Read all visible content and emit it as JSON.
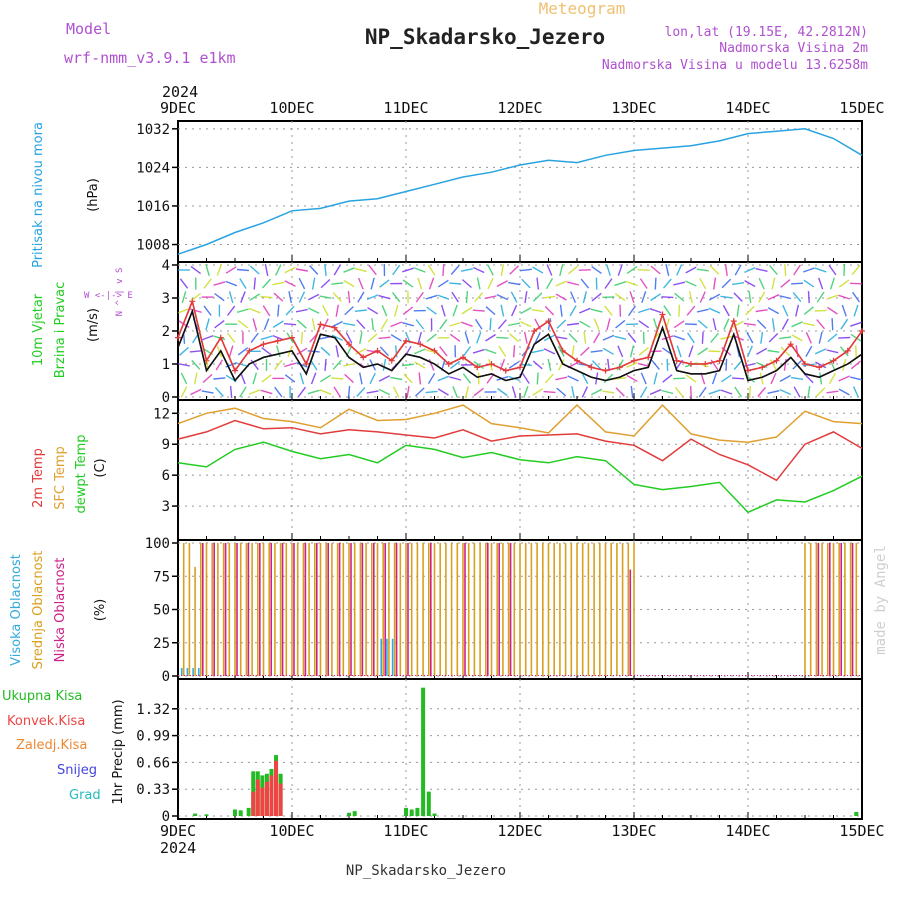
{
  "header": {
    "model_label": "Model",
    "model_name": "wrf-nmm_v3.9.1 e1km",
    "product": "Meteogram",
    "station": "NP_Skadarsko_Jezero",
    "coords": "lon,lat (19.15E, 42.2812N)",
    "elev_2m": "Nadmorska Visina 2m",
    "elev_model": "Nadmorska Visina u modelu 13.6258m",
    "watermark": "made by Angel",
    "footer_station": "NP_Skadarsko_Jezero"
  },
  "colors": {
    "pressure": "#29a3e0",
    "wind_speed": "#111111",
    "wind_gust": "#e23b3b",
    "temp_2m": "#e23b3b",
    "temp_sfc": "#e0a030",
    "temp_dew": "#22cc22",
    "cloud_high": "#33aadd",
    "cloud_mid": "#d9a020",
    "cloud_low": "#cc2288",
    "precip_total": "#22bb22",
    "precip_conv": "#ee4444",
    "precip_frozen": "#ee8833",
    "precip_snow": "#4444dd",
    "precip_hail": "#22bbbb",
    "label_purple": "#b050d0",
    "title_orange": "#f0c070"
  },
  "panel_labels": {
    "pressure": {
      "name": "Pritisak na nivou mora",
      "unit": "(hPa)"
    },
    "wind": {
      "line1": "10m Vjetar",
      "line2": "Brzina i Pravac",
      "unit": "(m/s)",
      "compass": "W <-|-> E",
      "compass_v": "N ^ | v S"
    },
    "temp": {
      "l1": "2m Temp",
      "l2": "SFC Temp",
      "l3": "dewpt Temp",
      "unit": "(C)"
    },
    "cloud": {
      "l1": "Visoka Oblacnost",
      "l2": "Srednja Oblacnost",
      "l3": "Niska Oblacnost",
      "unit": "(%)"
    },
    "precip": {
      "l1": "Ukupna Kisa",
      "l2": "Konvek.Kisa",
      "l3": "Zaledj.Kisa",
      "l4": "Snijeg",
      "l5": "Grad",
      "unit": "1hr Precip (mm)"
    }
  },
  "time_axis": {
    "year": "2024",
    "labels": [
      "9DEC",
      "10DEC",
      "11DEC",
      "12DEC",
      "13DEC",
      "14DEC",
      "15DEC"
    ]
  },
  "chart_data": [
    {
      "type": "line",
      "id": "pressure",
      "ylabel": "(hPa)",
      "ylim": [
        1005,
        1033
      ],
      "yticks": [
        1008,
        1016,
        1024,
        1032
      ],
      "x_days": [
        0,
        0.25,
        0.5,
        0.75,
        1.0,
        1.25,
        1.5,
        1.75,
        2.0,
        2.25,
        2.5,
        2.75,
        3.0,
        3.25,
        3.5,
        3.75,
        4.0,
        4.25,
        4.5,
        4.75,
        5.0,
        5.25,
        5.5,
        5.75,
        6.0
      ],
      "series": [
        {
          "values": [
            1006,
            1008,
            1010.5,
            1012.5,
            1015,
            1015.5,
            1017,
            1017.5,
            1019,
            1020.5,
            1022,
            1023,
            1024.5,
            1025.5,
            1025,
            1026.5,
            1027.5,
            1028,
            1028.5,
            1029.5,
            1031,
            1031.5,
            1032,
            1030,
            1026.5
          ]
        }
      ]
    },
    {
      "type": "line",
      "id": "wind",
      "ylabel": "(m/s)",
      "ylim": [
        0,
        4
      ],
      "yticks": [
        0,
        1,
        2,
        3,
        4
      ],
      "x_days": [
        0,
        0.125,
        0.25,
        0.375,
        0.5,
        0.625,
        0.75,
        0.875,
        1.0,
        1.125,
        1.25,
        1.375,
        1.5,
        1.625,
        1.75,
        1.875,
        2.0,
        2.125,
        2.25,
        2.375,
        2.5,
        2.625,
        2.75,
        2.875,
        3.0,
        3.125,
        3.25,
        3.375,
        3.5,
        3.625,
        3.75,
        3.875,
        4.0,
        4.125,
        4.25,
        4.375,
        4.5,
        4.625,
        4.75,
        4.875,
        5.0,
        5.125,
        5.25,
        5.375,
        5.5,
        5.625,
        5.75,
        5.875,
        6.0
      ],
      "series": [
        {
          "values": [
            1.5,
            2.6,
            0.8,
            1.4,
            0.5,
            1.0,
            1.2,
            1.3,
            1.4,
            0.7,
            1.9,
            1.8,
            1.2,
            0.9,
            1.0,
            0.8,
            1.3,
            1.2,
            1.0,
            0.7,
            0.9,
            0.6,
            0.7,
            0.5,
            0.6,
            1.6,
            1.9,
            1.0,
            0.8,
            0.6,
            0.5,
            0.6,
            0.8,
            0.9,
            2.1,
            0.8,
            0.7,
            0.7,
            0.8,
            1.9,
            0.5,
            0.6,
            0.8,
            1.2,
            0.7,
            0.6,
            0.8,
            1.0,
            1.3
          ]
        },
        {
          "values": [
            1.8,
            2.9,
            1.1,
            1.8,
            0.8,
            1.4,
            1.6,
            1.7,
            1.8,
            1.0,
            2.2,
            2.1,
            1.6,
            1.2,
            1.4,
            1.1,
            1.7,
            1.6,
            1.4,
            1.0,
            1.2,
            0.9,
            1.0,
            0.8,
            0.9,
            2.0,
            2.3,
            1.4,
            1.1,
            0.9,
            0.8,
            0.9,
            1.1,
            1.2,
            2.5,
            1.1,
            1.0,
            1.0,
            1.1,
            2.3,
            0.8,
            0.9,
            1.1,
            1.6,
            1.0,
            0.9,
            1.1,
            1.4,
            2.0
          ]
        }
      ]
    },
    {
      "type": "line",
      "id": "temp",
      "ylabel": "(C)",
      "ylim": [
        0,
        13
      ],
      "yticks": [
        3,
        6,
        9,
        12
      ],
      "x_days": [
        0,
        0.25,
        0.5,
        0.75,
        1.0,
        1.25,
        1.5,
        1.75,
        2.0,
        2.25,
        2.5,
        2.75,
        3.0,
        3.25,
        3.5,
        3.75,
        4.0,
        4.25,
        4.5,
        4.75,
        5.0,
        5.25,
        5.5,
        5.75,
        6.0
      ],
      "series": [
        {
          "values": [
            9.5,
            10.2,
            11.3,
            10.5,
            10.6,
            10.0,
            10.4,
            10.2,
            9.9,
            9.6,
            10.4,
            9.3,
            9.8,
            9.9,
            10.0,
            9.3,
            8.9,
            7.4,
            9.5,
            8.0,
            7.0,
            5.5,
            9.0,
            10.2,
            8.6
          ]
        },
        {
          "values": [
            11.0,
            12.0,
            12.5,
            11.5,
            11.2,
            10.6,
            12.4,
            11.3,
            11.4,
            12.0,
            12.8,
            11.0,
            10.6,
            10.1,
            12.8,
            10.2,
            9.8,
            12.8,
            10.0,
            9.4,
            9.2,
            9.7,
            12.2,
            11.2,
            11.0
          ]
        },
        {
          "values": [
            7.2,
            6.8,
            8.5,
            9.2,
            8.3,
            7.6,
            8.0,
            7.2,
            8.9,
            8.5,
            7.7,
            8.2,
            7.5,
            7.2,
            7.8,
            7.4,
            5.1,
            4.6,
            4.9,
            5.3,
            2.4,
            3.6,
            3.4,
            4.5,
            5.9
          ]
        }
      ]
    },
    {
      "type": "bar",
      "id": "cloud",
      "ylabel": "(%)",
      "ylim": [
        0,
        100
      ],
      "yticks": [
        0,
        25,
        50,
        75,
        100
      ],
      "x_days": [
        0.05,
        0.1,
        0.15,
        0.2,
        0.25,
        0.3,
        0.35,
        0.4,
        0.45,
        0.5,
        0.55,
        0.6,
        0.65,
        0.7,
        0.75,
        0.8,
        0.85,
        0.9,
        0.95,
        1.0,
        1.05,
        1.1,
        1.15,
        1.2,
        1.25,
        1.3,
        1.35,
        1.4,
        1.45,
        1.5,
        1.55,
        1.6,
        1.65,
        1.7,
        1.75,
        1.8,
        1.85,
        1.9,
        1.95,
        2.0,
        2.05,
        2.1,
        2.15,
        2.2,
        2.25,
        2.3,
        2.35,
        2.4,
        2.45,
        2.5,
        2.55,
        2.6,
        2.65,
        2.7,
        2.75,
        2.8,
        2.85,
        2.9,
        2.95,
        3.0,
        3.05,
        3.1,
        3.15,
        3.2,
        3.25,
        3.3,
        3.35,
        3.4,
        3.45,
        3.5,
        3.55,
        3.6,
        3.65,
        3.7,
        3.75,
        3.8,
        3.85,
        3.9,
        3.95,
        4.0,
        5.5,
        5.55,
        5.6,
        5.65,
        5.7,
        5.75,
        5.8,
        5.85,
        5.9,
        5.95
      ],
      "series": [
        {
          "values": [
            6,
            6,
            6,
            6,
            0,
            0,
            0,
            0,
            0,
            0,
            0,
            0,
            0,
            0,
            0,
            0,
            0,
            0,
            0,
            0,
            0,
            0,
            0,
            0,
            0,
            0,
            0,
            0,
            0,
            0,
            0,
            0,
            0,
            0,
            0,
            28,
            28,
            28,
            0,
            0,
            0,
            0,
            0,
            0,
            0,
            0,
            0,
            0,
            0,
            0,
            0,
            0,
            0,
            0,
            0,
            0,
            0,
            0,
            0,
            0,
            0,
            0,
            0,
            0,
            0,
            0,
            0,
            0,
            0,
            0,
            0,
            0,
            0,
            0,
            0,
            0,
            0,
            0,
            0,
            0,
            0,
            0,
            0,
            0,
            0,
            0,
            0,
            0,
            0,
            0
          ]
        },
        {
          "values": [
            100,
            100,
            82,
            100,
            100,
            100,
            100,
            100,
            100,
            100,
            100,
            100,
            100,
            100,
            100,
            100,
            100,
            100,
            100,
            100,
            100,
            100,
            100,
            100,
            100,
            100,
            100,
            100,
            100,
            100,
            100,
            100,
            100,
            100,
            100,
            100,
            100,
            100,
            100,
            100,
            100,
            100,
            100,
            100,
            100,
            100,
            100,
            100,
            100,
            100,
            100,
            100,
            100,
            100,
            100,
            100,
            100,
            100,
            100,
            100,
            100,
            100,
            100,
            100,
            100,
            100,
            100,
            100,
            100,
            100,
            100,
            100,
            100,
            100,
            100,
            100,
            100,
            100,
            100,
            100,
            100,
            100,
            100,
            100,
            100,
            100,
            100,
            100,
            100,
            100
          ]
        },
        {
          "values": [
            0,
            0,
            0,
            100,
            0,
            100,
            0,
            100,
            0,
            100,
            0,
            100,
            0,
            100,
            0,
            100,
            0,
            100,
            0,
            100,
            0,
            100,
            0,
            100,
            0,
            100,
            0,
            100,
            0,
            100,
            0,
            100,
            0,
            100,
            0,
            100,
            0,
            100,
            0,
            100,
            0,
            0,
            0,
            100,
            0,
            0,
            0,
            0,
            0,
            100,
            0,
            0,
            0,
            100,
            0,
            100,
            0,
            100,
            0,
            0,
            0,
            0,
            0,
            0,
            0,
            0,
            0,
            0,
            0,
            0,
            0,
            0,
            0,
            0,
            0,
            0,
            0,
            0,
            80,
            0,
            0,
            0,
            100,
            0,
            100,
            0,
            100,
            0,
            100,
            0
          ]
        }
      ]
    },
    {
      "type": "bar",
      "id": "precip",
      "ylabel": "1hr Precip (mm)",
      "ylim": [
        0,
        1.65
      ],
      "yticks": [
        0,
        0.33,
        0.66,
        0.99,
        1.32
      ],
      "x_days": [
        0.15,
        0.25,
        0.5,
        0.55,
        0.62,
        0.66,
        0.7,
        0.74,
        0.78,
        0.82,
        0.86,
        0.9,
        1.5,
        1.55,
        2.0,
        2.05,
        2.1,
        2.15,
        2.2,
        2.25,
        5.95
      ],
      "series": [
        {
          "values": [
            0.03,
            0.02,
            0.08,
            0.07,
            0.1,
            0.55,
            0.55,
            0.5,
            0.52,
            0.58,
            0.75,
            0.52,
            0.04,
            0.06,
            0.1,
            0.08,
            0.1,
            1.58,
            0.3,
            0.03,
            0.05
          ]
        },
        {
          "values": [
            0,
            0,
            0,
            0,
            0,
            0.3,
            0.45,
            0.35,
            0.42,
            0.5,
            0.68,
            0.4,
            0,
            0,
            0,
            0,
            0,
            0,
            0,
            0,
            0
          ]
        }
      ]
    }
  ]
}
